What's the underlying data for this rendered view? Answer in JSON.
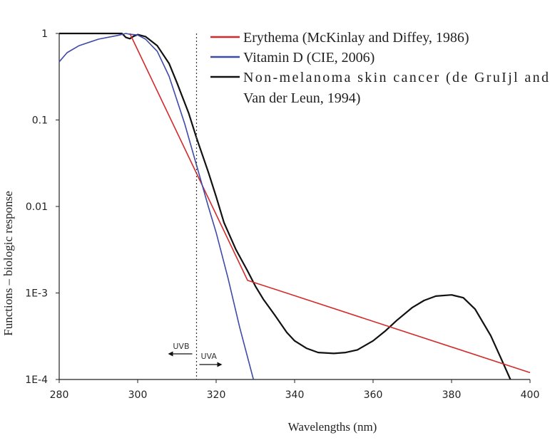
{
  "chart_data": {
    "type": "line",
    "title": "",
    "xlabel": "Wavelengths (nm)",
    "ylabel": "Functions – biologic response",
    "xlim": [
      280,
      400
    ],
    "ylim": [
      0.0001,
      1
    ],
    "yscale": "log",
    "grid": false,
    "legend_position": "top-right",
    "x_ticks": [
      280,
      300,
      320,
      340,
      360,
      380,
      400
    ],
    "x_tick_labels": [
      "280",
      "300",
      "320",
      "340",
      "360",
      "380",
      "400"
    ],
    "y_ticks": [
      1,
      0.1,
      0.01,
      0.001,
      0.0001
    ],
    "y_tick_labels": [
      "1",
      "0.1",
      "0.01",
      "1E-3",
      "1E-4"
    ],
    "annotations": {
      "boundary_x": 315,
      "left_label": "UVB",
      "right_label": "UVA"
    },
    "series": [
      {
        "name": "Erythema (McKinlay and Diffey, 1986)",
        "color": "#d42a2a",
        "x": [
          298,
          328,
          400
        ],
        "y": [
          1.0,
          0.0014,
          0.00012
        ]
      },
      {
        "name": "Vitamin D (CIE, 2006)",
        "color": "#3e4aa8",
        "x": [
          280,
          282,
          285,
          290,
          295,
          297,
          298,
          300,
          302,
          305,
          308,
          310,
          312,
          315,
          318,
          320,
          323,
          326,
          329.5
        ],
        "y": [
          0.47,
          0.6,
          0.72,
          0.86,
          0.95,
          1.0,
          0.98,
          0.96,
          0.86,
          0.62,
          0.32,
          0.17,
          0.09,
          0.03,
          0.01,
          0.005,
          0.0015,
          0.0004,
          0.0001
        ]
      },
      {
        "name": "Non-melanoma skin cancer (de GruIjl and Van der Leun, 1994)",
        "color": "#111111",
        "x": [
          280,
          296,
          297,
          298,
          299,
          300,
          302,
          305,
          308,
          310,
          313,
          315,
          318,
          320,
          322,
          325,
          328,
          330,
          332,
          335,
          338,
          340,
          343,
          346,
          350,
          353,
          356,
          360,
          363,
          366,
          370,
          373,
          376,
          380,
          383,
          386,
          390,
          393,
          395
        ],
        "y": [
          1.0,
          1.0,
          0.9,
          0.87,
          0.93,
          0.97,
          0.92,
          0.72,
          0.45,
          0.27,
          0.12,
          0.062,
          0.025,
          0.013,
          0.0065,
          0.0032,
          0.0018,
          0.0012,
          0.00085,
          0.00055,
          0.00035,
          0.00028,
          0.00023,
          0.000205,
          0.0002,
          0.000205,
          0.00022,
          0.00028,
          0.00036,
          0.00048,
          0.00068,
          0.00082,
          0.00092,
          0.00095,
          0.00088,
          0.00065,
          0.00032,
          0.00016,
          0.0001
        ]
      }
    ]
  }
}
